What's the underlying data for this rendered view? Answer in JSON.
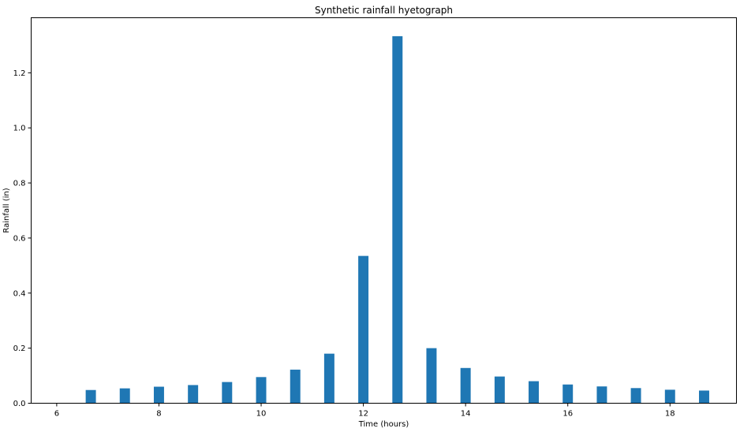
{
  "chart_data": {
    "type": "bar",
    "title": "Synthetic rainfall hyetograph",
    "xlabel": "Time (hours)",
    "ylabel": "Rainfall (in)",
    "xlim": [
      5.5,
      19.3
    ],
    "ylim": [
      0,
      1.4
    ],
    "xticks": [
      "6",
      "8",
      "10",
      "12",
      "14",
      "16",
      "18"
    ],
    "xtick_values": [
      6,
      8,
      10,
      12,
      14,
      16,
      18
    ],
    "yticks": [
      "0.0",
      "0.2",
      "0.4",
      "0.6",
      "0.8",
      "1.0",
      "1.2"
    ],
    "ytick_values": [
      0,
      0.2,
      0.4,
      0.6,
      0.8,
      1.0,
      1.2
    ],
    "bar_width": 0.2,
    "x": [
      6.0,
      6.667,
      7.333,
      8.0,
      8.667,
      9.333,
      10.0,
      10.667,
      11.333,
      12.0,
      12.667,
      13.333,
      14.0,
      14.667,
      15.333,
      16.0,
      16.667,
      17.333,
      18.0,
      18.667
    ],
    "values": [
      0.0,
      0.048,
      0.054,
      0.06,
      0.066,
      0.077,
      0.095,
      0.122,
      0.18,
      0.535,
      1.333,
      0.2,
      0.128,
      0.097,
      0.08,
      0.068,
      0.061,
      0.055,
      0.049,
      0.046
    ],
    "grid": false,
    "bar_color": "#1f77b4"
  }
}
